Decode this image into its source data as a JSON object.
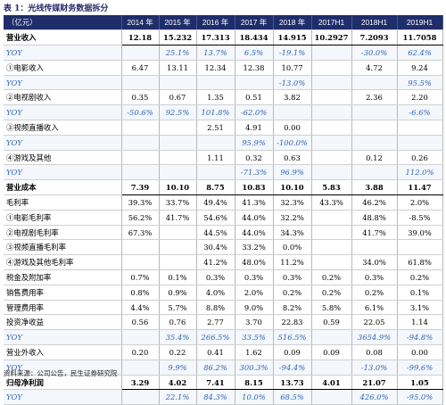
{
  "title": "表 1：光线传媒财务数据拆分",
  "header": [
    "（亿元）",
    "2014 年",
    "2015 年",
    "2016 年",
    "2017 年",
    "2018 年",
    "2017H1",
    "2018H1",
    "2019H1"
  ],
  "rows": [
    {
      "style": "bold",
      "cells": [
        "营业收入",
        "12.18",
        "15.232",
        "17.313",
        "18.434",
        "14.915",
        "10.2927",
        "7.2093",
        "11.7058"
      ]
    },
    {
      "style": "yoy",
      "cells": [
        "YOY",
        "",
        "25.1%",
        "13.7%",
        "6.5%",
        "-19.1%",
        "",
        "-30.0%",
        "62.4%"
      ]
    },
    {
      "style": "",
      "cells": [
        "①电影收入",
        "6.47",
        "13.11",
        "12.34",
        "12.38",
        "10.77",
        "",
        "4.72",
        "9.24"
      ]
    },
    {
      "style": "yoy",
      "cells": [
        "YOY",
        "",
        "",
        "",
        "",
        "-13.0%",
        "",
        "",
        "95.5%"
      ]
    },
    {
      "style": "",
      "cells": [
        "②电视剧收入",
        "0.35",
        "0.67",
        "1.35",
        "0.51",
        "3.82",
        "",
        "2.36",
        "2.20"
      ]
    },
    {
      "style": "yoy",
      "cells": [
        "YOY",
        "-50.6%",
        "92.5%",
        "101.8%",
        "-62.0%",
        "",
        "",
        "",
        "-6.6%"
      ]
    },
    {
      "style": "",
      "cells": [
        "③视频直播收入",
        "",
        "",
        "2.51",
        "4.91",
        "0.00",
        "",
        "",
        ""
      ]
    },
    {
      "style": "yoy",
      "cells": [
        "YOY",
        "",
        "",
        "",
        "95.9%",
        "-100.0%",
        "",
        "",
        ""
      ]
    },
    {
      "style": "",
      "cells": [
        "④游戏及其他",
        "",
        "",
        "1.11",
        "0.32",
        "0.63",
        "",
        "0.12",
        "0.26"
      ]
    },
    {
      "style": "yoy",
      "cells": [
        "YOY",
        "",
        "",
        "",
        "-71.3%",
        "96.9%",
        "",
        "",
        "112.0%"
      ]
    },
    {
      "style": "bold",
      "cells": [
        "营业成本",
        "7.39",
        "10.10",
        "8.75",
        "10.83",
        "10.10",
        "5.83",
        "3.88",
        "11.47"
      ]
    },
    {
      "style": "",
      "cells": [
        "毛利率",
        "39.3%",
        "33.7%",
        "49.4%",
        "41.3%",
        "32.3%",
        "43.3%",
        "46.2%",
        "2.0%"
      ]
    },
    {
      "style": "",
      "cells": [
        "①电影毛利率",
        "56.2%",
        "41.7%",
        "54.6%",
        "44.0%",
        "32.2%",
        "",
        "48.8%",
        "-8.5%"
      ]
    },
    {
      "style": "",
      "cells": [
        "②电视剧毛利率",
        "67.3%",
        "",
        "44.5%",
        "44.0%",
        "34.3%",
        "",
        "41.7%",
        "39.0%"
      ]
    },
    {
      "style": "",
      "cells": [
        "③视频直播毛利率",
        "",
        "",
        "30.4%",
        "33.2%",
        "0.0%",
        "",
        "",
        ""
      ]
    },
    {
      "style": "",
      "cells": [
        "④游戏及其他毛利率",
        "",
        "",
        "41.2%",
        "48.0%",
        "11.2%",
        "",
        "34.0%",
        "61.8%"
      ]
    },
    {
      "style": "",
      "cells": [
        "税金及附加率",
        "0.7%",
        "0.1%",
        "0.3%",
        "0.3%",
        "0.3%",
        "0.2%",
        "0.3%",
        "0.2%"
      ]
    },
    {
      "style": "",
      "cells": [
        "销售费用率",
        "0.8%",
        "0.9%",
        "4.0%",
        "2.0%",
        "0.2%",
        "0.2%",
        "0.2%",
        "0.1%"
      ]
    },
    {
      "style": "",
      "cells": [
        "管理费用率",
        "4.4%",
        "5.7%",
        "8.8%",
        "9.0%",
        "8.2%",
        "5.8%",
        "6.1%",
        "3.1%"
      ]
    },
    {
      "style": "",
      "cells": [
        "投资净收益",
        "0.56",
        "0.76",
        "2.77",
        "3.70",
        "22.83",
        "0.59",
        "22.05",
        "1.14"
      ]
    },
    {
      "style": "yoy",
      "cells": [
        "YOY",
        "",
        "35.4%",
        "266.5%",
        "33.5%",
        "516.5%",
        "",
        "3654.9%",
        "-94.8%"
      ]
    },
    {
      "style": "",
      "cells": [
        "营业外收入",
        "0.20",
        "0.22",
        "0.41",
        "1.62",
        "0.09",
        "0.09",
        "0.08",
        "0.00"
      ]
    },
    {
      "style": "yoy",
      "cells": [
        "YOY",
        "",
        "9.9%",
        "86.2%",
        "300.3%",
        "-94.4%",
        "",
        "-13.0%",
        "-99.6%"
      ]
    },
    {
      "style": "bold",
      "cells": [
        "归母净利润",
        "3.29",
        "4.02",
        "7.41",
        "8.15",
        "13.73",
        "4.01",
        "21.07",
        "1.05"
      ]
    },
    {
      "style": "yoy",
      "cells": [
        "YOY",
        "",
        "22.1%",
        "84.3%",
        "10.0%",
        "68.5%",
        "",
        "426.0%",
        "-95.0%"
      ]
    }
  ],
  "source": "资料来源：公司公告，民生证券研究院"
}
